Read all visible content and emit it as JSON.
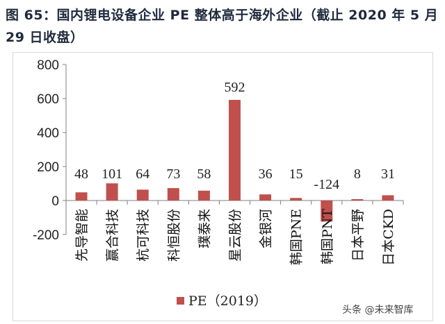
{
  "figure": {
    "title": "图 65：国内锂电设备企业 PE 整体高于海外企业（截止 2020 年 5 月 29 日收盘）",
    "watermark": "头条 @未来智库"
  },
  "chart_data": {
    "type": "bar",
    "title": "",
    "xlabel": "",
    "ylabel": "",
    "ylim": [
      -200,
      800
    ],
    "yticks": [
      -200,
      0,
      200,
      400,
      600,
      800
    ],
    "categories": [
      "先导智能",
      "赢合科技",
      "杭可科技",
      "科恒股份",
      "璞泰来",
      "星云股份",
      "金银河",
      "韩国PNE",
      "韩国PNT",
      "日本平野",
      "日本CKD"
    ],
    "series": [
      {
        "name": "PE（2019）",
        "color": "#c0504d",
        "values": [
          48,
          101,
          64,
          73,
          58,
          592,
          36,
          15,
          -124,
          8,
          31
        ]
      }
    ],
    "legend_position": "bottom",
    "grid": false
  }
}
